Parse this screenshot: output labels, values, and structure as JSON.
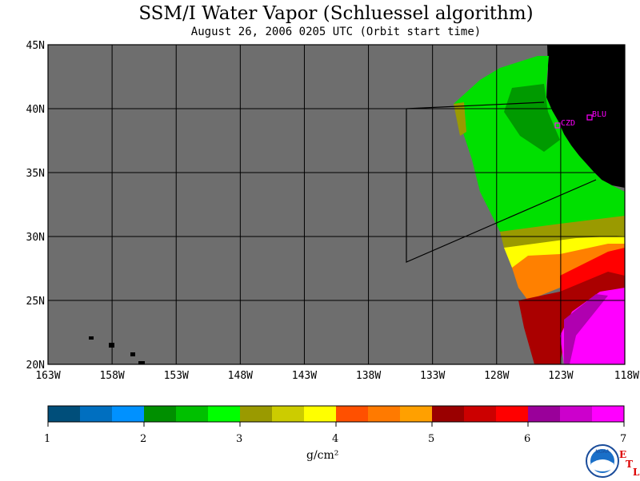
{
  "title": "SSM/I Water Vapor (Schluessel algorithm)",
  "subtitle": "August 26, 2006  0205 UTC  (Orbit start time)",
  "map": {
    "lat_ticks": [
      "45N",
      "40N",
      "35N",
      "30N",
      "25N",
      "20N"
    ],
    "lon_ticks": [
      "163W",
      "158W",
      "153W",
      "148W",
      "143W",
      "138W",
      "133W",
      "128W",
      "123W",
      "118W"
    ],
    "stations": [
      {
        "label": "CZD"
      },
      {
        "label": "BLU"
      }
    ],
    "colors": {
      "ocean_nodata": "#6e6e6e",
      "land": "#000000",
      "station": "#ff00ff"
    }
  },
  "colorbar": {
    "unit": "g/cm²",
    "tick_labels": [
      "1",
      "2",
      "3",
      "4",
      "5",
      "6",
      "7"
    ],
    "colors": [
      "#004e7a",
      "#006fc0",
      "#0091ff",
      "#008f00",
      "#00c000",
      "#00ff00",
      "#9a9a00",
      "#cccc00",
      "#ffff00",
      "#ff5000",
      "#ff7a00",
      "#ffa000",
      "#9a0000",
      "#cc0000",
      "#ff0000",
      "#9a009a",
      "#cc00cc",
      "#ff00ff"
    ]
  },
  "logo": {
    "noaa_text": "NOAA",
    "etl_letters": [
      "E",
      "T",
      "L"
    ]
  }
}
